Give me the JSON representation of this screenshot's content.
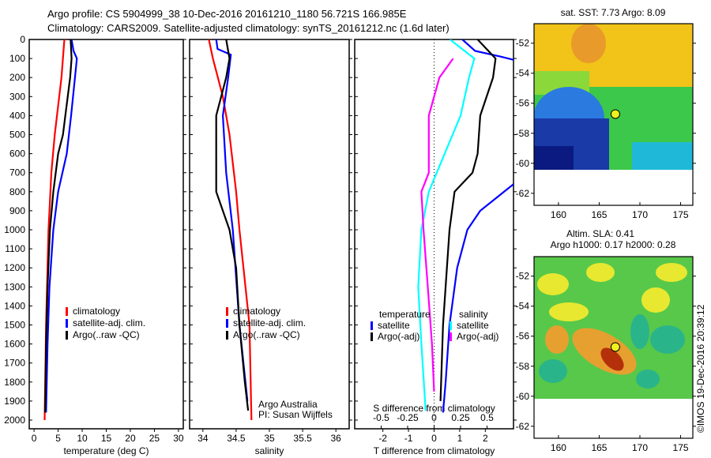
{
  "title": {
    "line1": "Argo profile: CS 5904999_38 10-Dec-2016 20161210_1180 56.721S 166.985E",
    "line2": "Climatology: CARS2009. Satellite-adjusted climatology: synTS_20161212.nc (1.6d later)"
  },
  "depth_ticks": [
    0,
    100,
    200,
    300,
    400,
    500,
    600,
    700,
    800,
    900,
    1000,
    1100,
    1200,
    1300,
    1400,
    1500,
    1600,
    1700,
    1800,
    1900,
    2000
  ],
  "credit": "©IMOS 19-Dec-2016 20:39:12",
  "colors": {
    "climatology": "#ff0000",
    "satellite": "#0000ff",
    "argo": "#000000",
    "sal_sat": "#00ffff",
    "sal_argo": "#ff00ff"
  },
  "chart_data": [
    {
      "type": "line",
      "xlabel": "temperature (deg C)",
      "ylabel": "depth",
      "xlim": [
        -1,
        31
      ],
      "ylim": [
        2050,
        0
      ],
      "xticks": [
        0,
        5,
        10,
        15,
        20,
        25,
        30
      ],
      "legend": {
        "placement": "bottom-right",
        "entries": [
          "climatology",
          "satellite-adj. clim.",
          "Argo(..raw -QC)"
        ]
      },
      "series": [
        {
          "name": "climatology",
          "color": "#ff0000",
          "depth": [
            0,
            200,
            500,
            700,
            1000,
            1500,
            2000
          ],
          "values": [
            6.3,
            5.7,
            4.3,
            3.6,
            3.0,
            2.5,
            2.2
          ]
        },
        {
          "name": "satellite-adj. clim.",
          "color": "#0000ff",
          "depth": [
            0,
            60,
            100,
            200,
            400,
            600,
            800,
            1000,
            1300,
            1600,
            1960
          ],
          "values": [
            7.8,
            8.2,
            8.9,
            8.5,
            7.7,
            6.8,
            5.0,
            4.0,
            3.2,
            2.8,
            2.5
          ]
        },
        {
          "name": "Argo(..raw -QC)",
          "color": "#000000",
          "depth": [
            0,
            100,
            200,
            400,
            500,
            600,
            800,
            1000,
            1300,
            1600,
            1960
          ],
          "values": [
            7.6,
            7.8,
            7.5,
            6.5,
            6.0,
            5.0,
            4.0,
            3.3,
            2.8,
            2.5,
            2.3
          ]
        }
      ]
    },
    {
      "type": "line",
      "xlabel": "salinity",
      "xlim": [
        33.8,
        36.2
      ],
      "ylim": [
        2050,
        0
      ],
      "xticks": [
        34,
        34.5,
        35,
        35.5,
        36
      ],
      "legend": {
        "placement": "bottom-right",
        "entries": [
          "climatology",
          "satellite-adj. clim.",
          "Argo(..raw -QC)"
        ]
      },
      "annotation": [
        "Argo Australia",
        "PI: Susan Wijffels"
      ],
      "series": [
        {
          "name": "climatology",
          "color": "#ff0000",
          "depth": [
            0,
            100,
            300,
            500,
            800,
            1000,
            1500,
            2000
          ],
          "values": [
            34.09,
            34.15,
            34.3,
            34.4,
            34.5,
            34.55,
            34.7,
            34.73
          ]
        },
        {
          "name": "satellite-adj. clim.",
          "color": "#0000ff",
          "depth": [
            0,
            50,
            80,
            200,
            400,
            700,
            1000,
            1500,
            1900
          ],
          "values": [
            34.2,
            34.22,
            34.42,
            34.38,
            34.3,
            34.35,
            34.45,
            34.55,
            34.67
          ]
        },
        {
          "name": "Argo(..raw -QC)",
          "color": "#000000",
          "depth": [
            0,
            100,
            200,
            400,
            600,
            800,
            1000,
            1200,
            1500,
            1800,
            1950
          ],
          "values": [
            34.35,
            34.4,
            34.35,
            34.2,
            34.2,
            34.2,
            34.4,
            34.5,
            34.55,
            34.63,
            34.68
          ]
        }
      ]
    },
    {
      "type": "line",
      "xlabel": "T difference from climatology",
      "x2label": "S difference from climatology",
      "xlim": [
        -3.1,
        3.1
      ],
      "x2lim": [
        -0.75,
        0.75
      ],
      "ylim": [
        2050,
        0
      ],
      "xticks": [
        -2,
        -1,
        0,
        1,
        2
      ],
      "x2ticks": [
        -0.5,
        -0.25,
        0,
        0.25,
        0.5
      ],
      "legend": {
        "placement": "bottom",
        "headers": [
          "temperature",
          "salinity"
        ],
        "entries": [
          "satellite",
          "Argo(-adj)",
          "satellite",
          "Argo(-adj)"
        ]
      },
      "series": [
        {
          "name": "temperature satellite",
          "axis": "T",
          "color": "#0000ff",
          "depth": [
            0,
            60,
            90,
            110,
            null,
            760,
            900,
            1000,
            1200,
            1500,
            1800,
            1960
          ],
          "values": [
            1.1,
            1.6,
            2.6,
            3.2,
            null,
            3.1,
            1.8,
            1.3,
            0.9,
            0.6,
            0.45,
            0.35
          ]
        },
        {
          "name": "temperature Argo(-adj)",
          "axis": "T",
          "color": "#000000",
          "depth": [
            0,
            100,
            200,
            400,
            600,
            700,
            800,
            1000,
            1200,
            1500,
            1900
          ],
          "values": [
            1.7,
            2.4,
            2.3,
            1.8,
            1.7,
            1.5,
            0.8,
            0.6,
            0.5,
            0.35,
            0.25
          ]
        },
        {
          "name": "salinity satellite",
          "axis": "S",
          "color": "#00ffff",
          "depth": [
            0,
            100,
            200,
            400,
            600,
            800,
            1000,
            1300,
            1600,
            1950
          ],
          "values": [
            0.15,
            0.38,
            0.33,
            0.25,
            0.1,
            -0.05,
            -0.12,
            -0.15,
            -0.12,
            -0.08
          ]
        },
        {
          "name": "salinity Argo(-adj)",
          "axis": "S",
          "color": "#ff00ff",
          "depth": [
            100,
            200,
            400,
            700,
            800,
            1000,
            1300,
            1600,
            1850
          ],
          "values": [
            0.18,
            0.05,
            -0.05,
            -0.05,
            -0.12,
            -0.1,
            -0.06,
            -0.02,
            0.0
          ]
        }
      ]
    },
    {
      "type": "heatmap",
      "title": "sat. SST: 7.73 Argo: 8.09",
      "xlim": [
        157,
        176.5
      ],
      "ylim": [
        -62.8,
        -50.7
      ],
      "xticks": [
        160,
        165,
        170,
        175
      ],
      "yticks": [
        -52,
        -54,
        -56,
        -58,
        -60,
        -62
      ],
      "marker": {
        "lon": 166.985,
        "lat": -56.721
      }
    },
    {
      "type": "heatmap",
      "title": "Altim. SLA: 0.41",
      "subtitle": "Argo h1000: 0.17 h2000: 0.28",
      "xlim": [
        157,
        176.5
      ],
      "ylim": [
        -62.8,
        -50.7
      ],
      "xticks": [
        160,
        165,
        170,
        175
      ],
      "yticks": [
        -52,
        -54,
        -56,
        -58,
        -60,
        -62
      ],
      "marker": {
        "lon": 166.985,
        "lat": -56.721
      }
    }
  ]
}
